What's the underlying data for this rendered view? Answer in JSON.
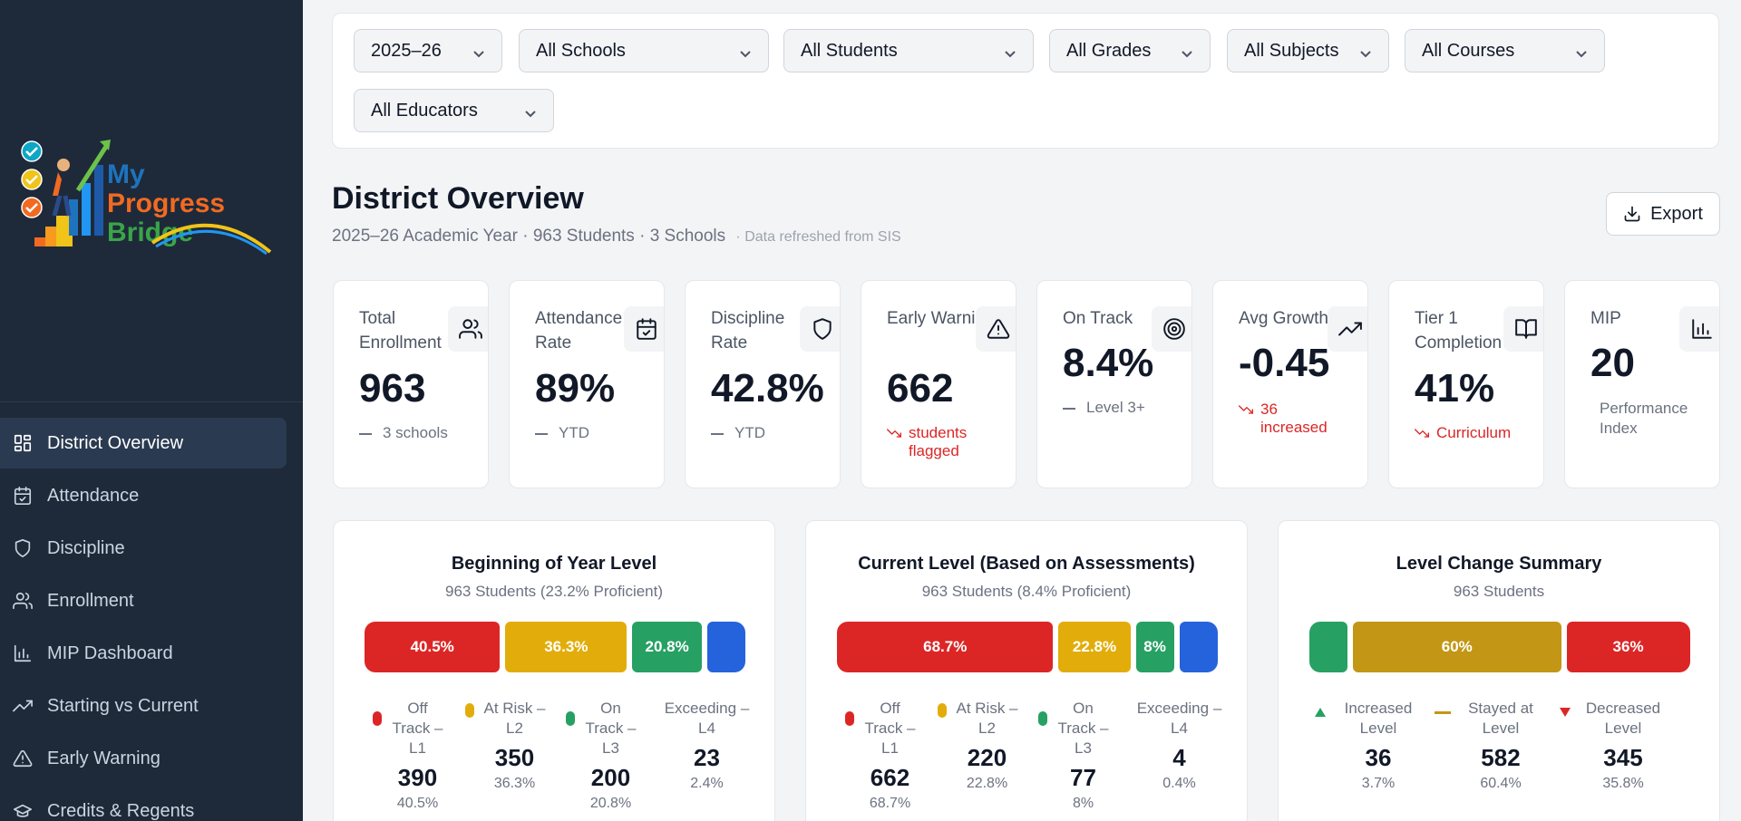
{
  "brand": {
    "logo_alt": "My Progress Bridge"
  },
  "sidebar": {
    "items": [
      {
        "label": "District Overview",
        "icon": "grid-icon",
        "active": true
      },
      {
        "label": "Attendance",
        "icon": "calendar-check-icon"
      },
      {
        "label": "Discipline",
        "icon": "shield-icon"
      },
      {
        "label": "Enrollment",
        "icon": "users-icon"
      },
      {
        "label": "MIP Dashboard",
        "icon": "bar-chart-icon"
      },
      {
        "label": "Starting vs Current",
        "icon": "trending-up-icon"
      },
      {
        "label": "Early Warning",
        "icon": "warning-icon"
      },
      {
        "label": "Credits & Regents",
        "icon": "graduation-cap-icon"
      }
    ]
  },
  "filters": {
    "year": "2025–26",
    "school": "All Schools",
    "student": "All Students",
    "grade": "All Grades",
    "subject": "All Subjects",
    "course": "All Courses",
    "educator": "All Educators"
  },
  "header": {
    "title": "District Overview",
    "subtitle": "2025–26 Academic Year · 963 Students · 3 Schools",
    "refresh_note": "· Data refreshed from SIS",
    "export_label": "Export"
  },
  "kpis": [
    {
      "label": "Total Enrollment",
      "value": "963",
      "note": "3 schools",
      "note_type": "neutral",
      "icon": "users-icon"
    },
    {
      "label": "Attendance Rate",
      "value": "89%",
      "note": "YTD",
      "note_type": "neutral",
      "icon": "calendar-check-icon"
    },
    {
      "label": "Discipline Rate",
      "value": "42.8%",
      "note": "YTD",
      "note_type": "neutral",
      "icon": "shield-icon"
    },
    {
      "label": "Early Warning",
      "value": "662",
      "note": "students flagged",
      "note_type": "negative",
      "icon": "warning-icon"
    },
    {
      "label": "On Track",
      "value": "8.4%",
      "note": "Level 3+",
      "note_type": "neutral",
      "icon": "target-icon"
    },
    {
      "label": "Avg Growth",
      "value": "-0.45",
      "note": "36 increased",
      "note_type": "negative",
      "icon": "trending-up-icon"
    },
    {
      "label": "Tier 1 Completion",
      "value": "41%",
      "note": "Curriculum",
      "note_type": "negative",
      "icon": "book-open-icon"
    },
    {
      "label": "MIP",
      "value": "20",
      "note": "Performance Index",
      "note_type": "plain",
      "icon": "bar-chart-icon"
    }
  ],
  "colors": {
    "l1": "#dc2626",
    "l2": "#e2ad0b",
    "l3": "#27a063",
    "l4": "#2563dc",
    "stayed": "#c39715"
  },
  "boy": {
    "title": "Beginning of Year Level",
    "subtitle": "963 Students (23.2% Proficient)",
    "segments": [
      {
        "label": "40.5%",
        "pct": 40.5
      },
      {
        "label": "36.3%",
        "pct": 36.3
      },
      {
        "label": "20.8%",
        "pct": 20.8
      },
      {
        "label": "",
        "pct": 2.4
      }
    ],
    "legend": [
      {
        "label": "Off Track – L1",
        "count": "390",
        "pct": "40.5%"
      },
      {
        "label": "At Risk – L2",
        "count": "350",
        "pct": "36.3%"
      },
      {
        "label": "On Track – L3",
        "count": "200",
        "pct": "20.8%"
      },
      {
        "label": "Exceeding – L4",
        "count": "23",
        "pct": "2.4%"
      }
    ]
  },
  "current": {
    "title": "Current Level (Based on Assessments)",
    "subtitle": "963 Students (8.4% Proficient)",
    "segments": [
      {
        "label": "68.7%",
        "pct": 68.7
      },
      {
        "label": "22.8%",
        "pct": 22.8
      },
      {
        "label": "8%",
        "pct": 8.0
      },
      {
        "label": "",
        "pct": 0.4
      }
    ],
    "legend": [
      {
        "label": "Off Track – L1",
        "count": "662",
        "pct": "68.7%"
      },
      {
        "label": "At Risk – L2",
        "count": "220",
        "pct": "22.8%"
      },
      {
        "label": "On Track – L3",
        "count": "77",
        "pct": "8%"
      },
      {
        "label": "Exceeding – L4",
        "count": "4",
        "pct": "0.4%"
      }
    ]
  },
  "change": {
    "title": "Level Change Summary",
    "subtitle": "963 Students",
    "segments": [
      {
        "label": "",
        "pct": 3.7
      },
      {
        "label": "60%",
        "pct": 60.4
      },
      {
        "label": "36%",
        "pct": 35.8
      }
    ],
    "legend": [
      {
        "label": "Increased Level",
        "count": "36",
        "pct": "3.7%"
      },
      {
        "label": "Stayed at Level",
        "count": "582",
        "pct": "60.4%"
      },
      {
        "label": "Decreased Level",
        "count": "345",
        "pct": "35.8%"
      }
    ]
  }
}
